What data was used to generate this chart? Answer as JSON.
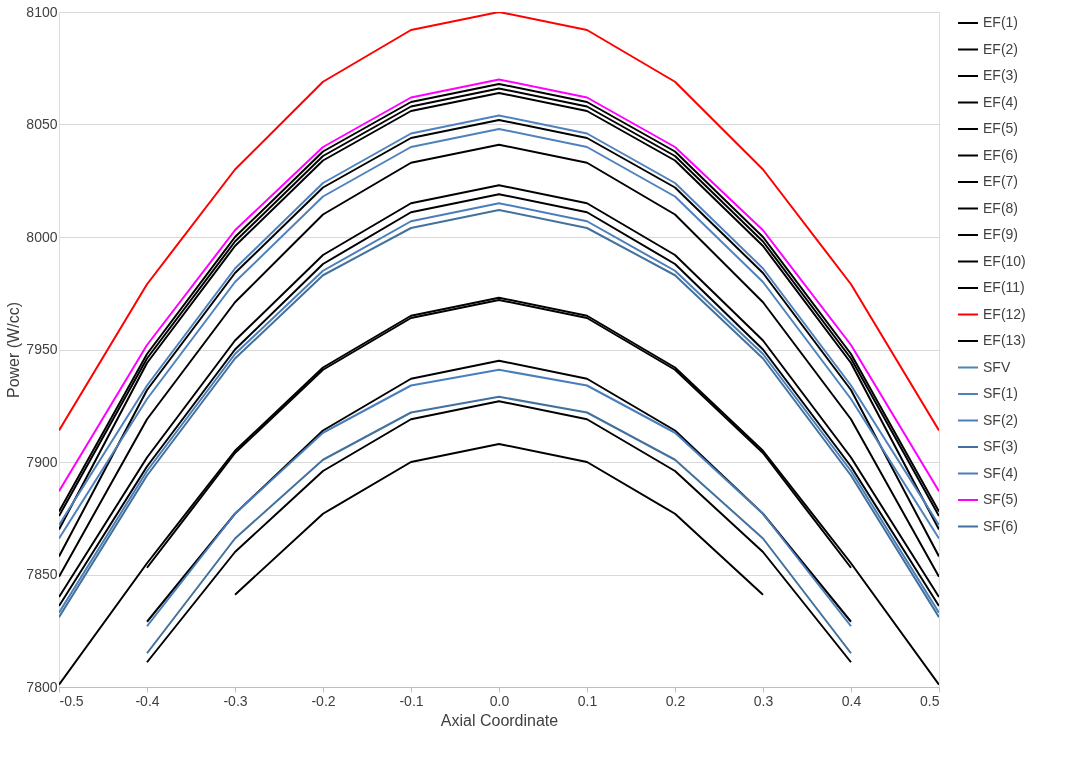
{
  "chart_data": {
    "type": "line",
    "xlabel": "Axial Coordinate",
    "ylabel": "Power (W/cc)",
    "x": [
      -0.5,
      -0.4,
      -0.3,
      -0.2,
      -0.1,
      0,
      0.1,
      0.2,
      0.3,
      0.4,
      0.5
    ],
    "xlim": [
      -0.5,
      0.5
    ],
    "xticks": [
      -0.5,
      -0.4,
      -0.3,
      -0.2,
      -0.1,
      {
        "value": 0,
        "label": "0.0"
      },
      0.1,
      0.2,
      0.3,
      0.4,
      0.5
    ],
    "ylim": [
      7800,
      8100
    ],
    "yticks": [
      7800,
      7850,
      7900,
      7950,
      8000,
      8050,
      8100
    ],
    "grid": "y",
    "legend": "right",
    "marker": "none",
    "line_style": "solid",
    "series": [
      {
        "name": "EF(1)",
        "color": "#000000",
        "values": [
          7878,
          7948,
          8000,
          8038,
          8060,
          8068,
          8060,
          8038,
          8000,
          7948,
          7878
        ]
      },
      {
        "name": "EF(2)",
        "color": "#000000",
        "values": [
          7876,
          7946,
          7998,
          8036,
          8058,
          8066,
          8058,
          8036,
          7998,
          7946,
          7876
        ]
      },
      {
        "name": "EF(3)",
        "color": "#000000",
        "values": [
          7870,
          7944,
          7996,
          8034,
          8056,
          8064,
          8056,
          8034,
          7996,
          7944,
          7870
        ]
      },
      {
        "name": "EF(4)",
        "color": "#000000",
        "values": [
          7858,
          7932,
          7984,
          8022,
          8044,
          8052,
          8044,
          8022,
          7984,
          7932,
          7858
        ]
      },
      {
        "name": "EF(5)",
        "color": "#000000",
        "values": [
          7849,
          7919,
          7971,
          8010,
          8033,
          8041,
          8033,
          8010,
          7971,
          7919,
          7849
        ]
      },
      {
        "name": "EF(6)",
        "color": "#000000",
        "values": [
          7840,
          7902,
          7954,
          7992,
          8015,
          8023,
          8015,
          7992,
          7954,
          7902,
          7840
        ]
      },
      {
        "name": "EF(7)",
        "color": "#000000",
        "values": [
          7836,
          7898,
          7950,
          7988,
          8011,
          8019,
          8011,
          7988,
          7950,
          7898,
          7836
        ]
      },
      {
        "name": "EF(8)",
        "color": "#000000",
        "values": [
          7801,
          7855,
          7905,
          7942,
          7965,
          7973,
          7965,
          7942,
          7905,
          7855,
          7801
        ]
      },
      {
        "name": "EF(9)",
        "color": "#000000",
        "values": [
          null,
          7853,
          7904,
          7941,
          7964,
          7972,
          7964,
          7941,
          7904,
          7853,
          null
        ]
      },
      {
        "name": "EF(10)",
        "color": "#000000",
        "values": [
          null,
          7829,
          7877,
          7914,
          7937,
          7945,
          7937,
          7914,
          7877,
          7829,
          null
        ]
      },
      {
        "name": "EF(11)",
        "color": "#000000",
        "values": [
          null,
          7811,
          7860,
          7896,
          7919,
          7927,
          7919,
          7896,
          7860,
          7811,
          null
        ]
      },
      {
        "name": "EF(12)",
        "color": "#ff0000",
        "values": [
          7914,
          7979,
          8030,
          8069,
          8092,
          8100,
          8092,
          8069,
          8030,
          7979,
          7914
        ]
      },
      {
        "name": "EF(13)",
        "color": "#000000",
        "values": [
          null,
          null,
          7841,
          7877,
          7900,
          7908,
          7900,
          7877,
          7841,
          null,
          null
        ]
      },
      {
        "name": "SFV",
        "color": "#4f81bd",
        "values": [
          7872,
          7934,
          7986,
          8024,
          8046,
          8054,
          8046,
          8024,
          7986,
          7934,
          7872
        ]
      },
      {
        "name": "SF(1)",
        "color": "#4f81bd",
        "values": [
          7866,
          7928,
          7980,
          8018,
          8040,
          8048,
          8040,
          8018,
          7980,
          7928,
          7866
        ]
      },
      {
        "name": "SF(2)",
        "color": "#4a7ebb",
        "values": [
          7833,
          7896,
          7948,
          7985,
          8007,
          8015,
          8007,
          7985,
          7948,
          7896,
          7833
        ]
      },
      {
        "name": "SF(3)",
        "color": "#41719c",
        "values": [
          7831,
          7894,
          7946,
          7983,
          8004,
          8012,
          8004,
          7983,
          7946,
          7894,
          7831
        ]
      },
      {
        "name": "SF(4)",
        "color": "#4a7ebb",
        "values": [
          null,
          7827,
          7877,
          7913,
          7934,
          7941,
          7934,
          7913,
          7877,
          7827,
          null
        ]
      },
      {
        "name": "SF(5)",
        "color": "#ff00ff",
        "values": [
          7887,
          7952,
          8003,
          8040,
          8062,
          8070,
          8062,
          8040,
          8003,
          7952,
          7887
        ]
      },
      {
        "name": "SF(6)",
        "color": "#41719c",
        "values": [
          null,
          7815,
          7866,
          7901,
          7922,
          7929,
          7922,
          7901,
          7866,
          7815,
          null
        ]
      }
    ]
  }
}
